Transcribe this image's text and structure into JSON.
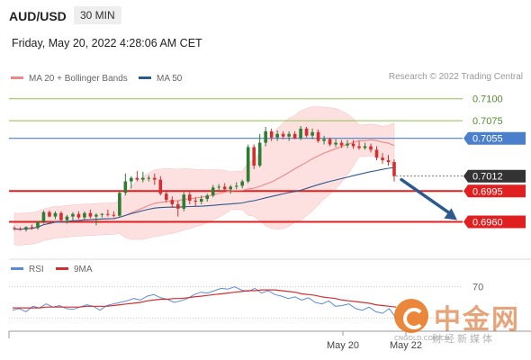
{
  "header": {
    "symbol": "AUD/USD",
    "timeframe": "30 MIN",
    "datetime": "Friday, May 20, 2022 4:28:06 AM CET"
  },
  "legend": {
    "main": [
      "MA 20 + Bollinger Bands",
      "MA 50"
    ],
    "rsi": [
      "RSI",
      "9MA"
    ]
  },
  "copyright": "Research © 2022 Trading Central",
  "watermark": {
    "brand": "中金网",
    "domain": "CNGOLD.COM.CN",
    "slogan": "财经新媒体"
  },
  "colors": {
    "up": "#2e7d32",
    "down": "#d32f2f",
    "ma20": "#ee8888",
    "ma50": "#2d5a8e",
    "band": "#fde1e1",
    "resistance": "#8bc34a",
    "pivot": "#4a7fcb",
    "support": "#e02020",
    "last": "#333333",
    "arrow": "#2d5a8e",
    "rsi": "#5b8bd8",
    "rsi_ma": "#d32f2f"
  },
  "chart_data": [
    {
      "type": "candlestick",
      "x_tick_labels": [
        "May 20",
        "May 22"
      ],
      "legend_placement": "top-left",
      "grid": false,
      "ylim": [
        0.6938,
        0.7112
      ],
      "levels": [
        {
          "value": 0.71,
          "label": "0.7100",
          "kind": "resistance"
        },
        {
          "value": 0.7075,
          "label": "0.7075",
          "kind": "resistance"
        },
        {
          "value": 0.7055,
          "label": "0.7055",
          "kind": "pivot"
        },
        {
          "value": 0.7012,
          "label": "0.7012",
          "kind": "last"
        },
        {
          "value": 0.6995,
          "label": "0.6995",
          "kind": "support"
        },
        {
          "value": 0.696,
          "label": "0.6960",
          "kind": "support"
        }
      ],
      "projection": {
        "from": 0.7008,
        "to": 0.6962,
        "direction": "down"
      },
      "candles": [
        [
          0.6953,
          0.6955,
          0.695,
          0.6952
        ],
        [
          0.6952,
          0.6954,
          0.695,
          0.6951
        ],
        [
          0.6951,
          0.6955,
          0.6949,
          0.6954
        ],
        [
          0.6954,
          0.6957,
          0.6951,
          0.6953
        ],
        [
          0.6953,
          0.6961,
          0.6951,
          0.696
        ],
        [
          0.696,
          0.6973,
          0.6958,
          0.6971
        ],
        [
          0.6971,
          0.6973,
          0.6965,
          0.6966
        ],
        [
          0.6966,
          0.6972,
          0.6963,
          0.697
        ],
        [
          0.697,
          0.6972,
          0.696,
          0.6962
        ],
        [
          0.6962,
          0.6968,
          0.6958,
          0.6966
        ],
        [
          0.6966,
          0.6971,
          0.6962,
          0.6969
        ],
        [
          0.6969,
          0.6972,
          0.6963,
          0.6965
        ],
        [
          0.6965,
          0.6972,
          0.6962,
          0.697
        ],
        [
          0.697,
          0.6974,
          0.6964,
          0.6966
        ],
        [
          0.6966,
          0.697,
          0.6956,
          0.6968
        ],
        [
          0.6968,
          0.697,
          0.6965,
          0.6969
        ],
        [
          0.6969,
          0.6974,
          0.6966,
          0.6968
        ],
        [
          0.6968,
          0.6972,
          0.6965,
          0.6967
        ],
        [
          0.6967,
          0.6995,
          0.6965,
          0.6993
        ],
        [
          0.6993,
          0.7015,
          0.699,
          0.7006
        ],
        [
          0.7006,
          0.7012,
          0.6998,
          0.701
        ],
        [
          0.701,
          0.7018,
          0.7006,
          0.7008
        ],
        [
          0.7008,
          0.7017,
          0.7005,
          0.701
        ],
        [
          0.701,
          0.7013,
          0.7006,
          0.701
        ],
        [
          0.701,
          0.7015,
          0.7002,
          0.7008
        ],
        [
          0.7008,
          0.7012,
          0.699,
          0.6992
        ],
        [
          0.6992,
          0.6996,
          0.6982,
          0.6985
        ],
        [
          0.6985,
          0.6989,
          0.6976,
          0.698
        ],
        [
          0.698,
          0.6984,
          0.6966,
          0.6975
        ],
        [
          0.6975,
          0.6994,
          0.6972,
          0.6991
        ],
        [
          0.6991,
          0.6995,
          0.698,
          0.6984
        ],
        [
          0.6984,
          0.6988,
          0.6978,
          0.6983
        ],
        [
          0.6983,
          0.699,
          0.698,
          0.6986
        ],
        [
          0.6986,
          0.6992,
          0.6983,
          0.699
        ],
        [
          0.699,
          0.7002,
          0.6988,
          0.6999
        ],
        [
          0.6999,
          0.7003,
          0.6994,
          0.7
        ],
        [
          0.7,
          0.7004,
          0.6995,
          0.6997
        ],
        [
          0.6997,
          0.7002,
          0.6992,
          0.7
        ],
        [
          0.7,
          0.7005,
          0.6997,
          0.7001
        ],
        [
          0.7001,
          0.7008,
          0.6998,
          0.7006
        ],
        [
          0.7006,
          0.7048,
          0.7004,
          0.7045
        ],
        [
          0.7045,
          0.7048,
          0.702,
          0.7024
        ],
        [
          0.7024,
          0.706,
          0.7022,
          0.705
        ],
        [
          0.705,
          0.7068,
          0.7046,
          0.7063
        ],
        [
          0.7063,
          0.7066,
          0.7052,
          0.7056
        ],
        [
          0.7056,
          0.7064,
          0.7052,
          0.706
        ],
        [
          0.706,
          0.7063,
          0.7054,
          0.7057
        ],
        [
          0.7057,
          0.7063,
          0.7052,
          0.706
        ],
        [
          0.706,
          0.7063,
          0.7054,
          0.7055
        ],
        [
          0.7055,
          0.7069,
          0.7053,
          0.7066
        ],
        [
          0.7066,
          0.7068,
          0.7056,
          0.7058
        ],
        [
          0.7058,
          0.7066,
          0.7054,
          0.7062
        ],
        [
          0.7062,
          0.7065,
          0.705,
          0.7052
        ],
        [
          0.7052,
          0.7058,
          0.7048,
          0.7054
        ],
        [
          0.7054,
          0.7056,
          0.7046,
          0.7048
        ],
        [
          0.7048,
          0.7054,
          0.7045,
          0.705
        ],
        [
          0.705,
          0.7053,
          0.7044,
          0.7047
        ],
        [
          0.7047,
          0.7053,
          0.7044,
          0.7049
        ],
        [
          0.7049,
          0.7053,
          0.7043,
          0.7046
        ],
        [
          0.7046,
          0.7052,
          0.7042,
          0.7044
        ],
        [
          0.7044,
          0.705,
          0.7042,
          0.7046
        ],
        [
          0.7046,
          0.7049,
          0.7039,
          0.7042
        ],
        [
          0.7042,
          0.7046,
          0.703,
          0.7033
        ],
        [
          0.7033,
          0.7038,
          0.7026,
          0.703
        ],
        [
          0.703,
          0.7036,
          0.7024,
          0.7028
        ],
        [
          0.7028,
          0.7031,
          0.7006,
          0.7012
        ]
      ]
    },
    {
      "type": "line",
      "name": "RSI",
      "y_tick_labels": [
        "70"
      ],
      "ylim": [
        20,
        80
      ],
      "series": [
        {
          "name": "RSI",
          "values": [
            40,
            42,
            38,
            45,
            43,
            48,
            44,
            46,
            42,
            41,
            44,
            47,
            45,
            40,
            46,
            48,
            50,
            52,
            55,
            53,
            58,
            60,
            56,
            54,
            50,
            52,
            55,
            60,
            63,
            62,
            65,
            68,
            67,
            70,
            66,
            64,
            68,
            62,
            65,
            60,
            58,
            55,
            57,
            53,
            56,
            50,
            48,
            52,
            45,
            46,
            48,
            42,
            40,
            44,
            38,
            36,
            42,
            30
          ]
        },
        {
          "name": "9MA",
          "values": [
            43,
            43,
            43,
            43,
            43,
            44,
            44,
            44,
            44,
            44,
            44,
            45,
            45,
            45,
            45,
            46,
            47,
            48,
            49,
            50,
            52,
            53,
            54,
            54,
            55,
            55,
            56,
            57,
            58,
            59,
            60,
            61,
            62,
            63,
            64,
            65,
            65,
            66,
            66,
            66,
            65,
            64,
            63,
            61,
            60,
            59,
            57,
            56,
            55,
            53,
            52,
            51,
            50,
            49,
            47,
            46,
            45,
            44
          ]
        }
      ]
    }
  ]
}
